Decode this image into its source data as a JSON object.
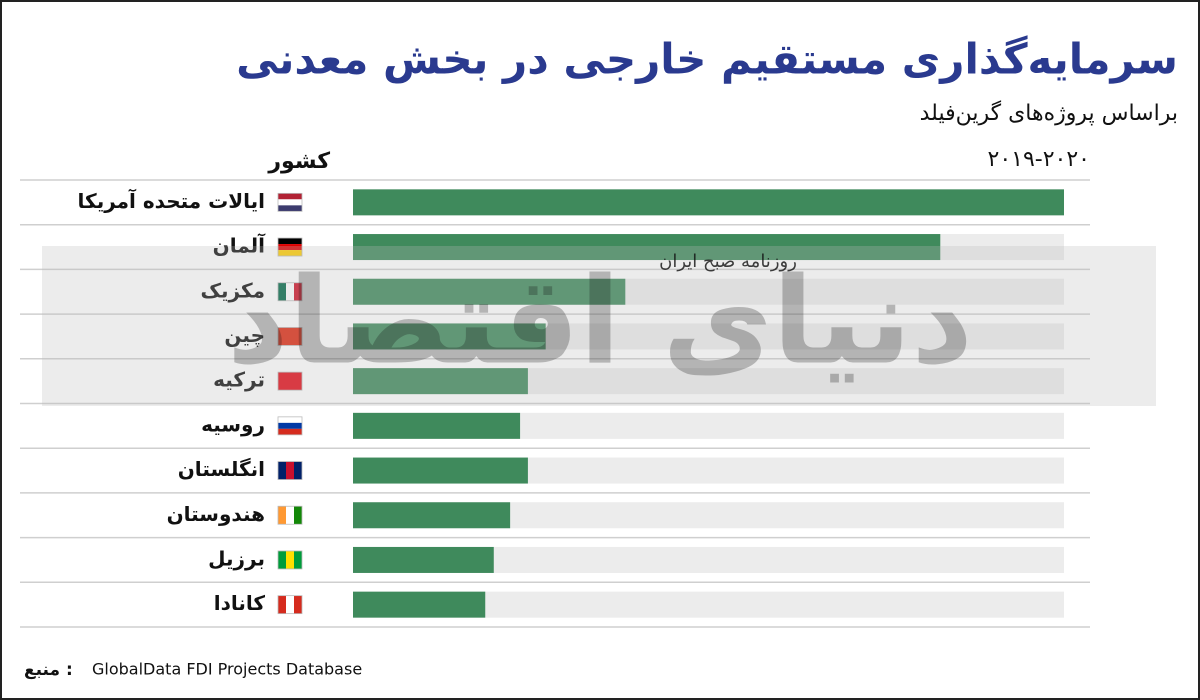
{
  "chart_data": {
    "type": "barh",
    "title": "سرمایه‌گذاری مستقیم خارجی در بخش معدنی",
    "subtitle": "براساس پروژه‌های گرین‌فیلد",
    "y_label": "کشور",
    "period": "۲۰۱۹-۲۰۲۰",
    "source_label": "منبع :",
    "source": "GlobalData FDI Projects Database",
    "watermark": "دنیای اقتصاد",
    "watermark_sub": "روزنامه صبح ایران",
    "categories": [
      "ایالات متحده آمریکا",
      "آلمان",
      "مکزیک",
      "چین",
      "ترکیه",
      "روسیه",
      "انگلستان",
      "هندوستان",
      "برزیل",
      "کانادا"
    ],
    "values": [
      100,
      82.6,
      38.3,
      27.1,
      24.6,
      23.5,
      24.6,
      22.1,
      19.8,
      18.6
    ],
    "color": "#3f8a5c",
    "track_color": "#ececec",
    "title_color": "#2a3a8f",
    "xlim": [
      0,
      100
    ]
  }
}
